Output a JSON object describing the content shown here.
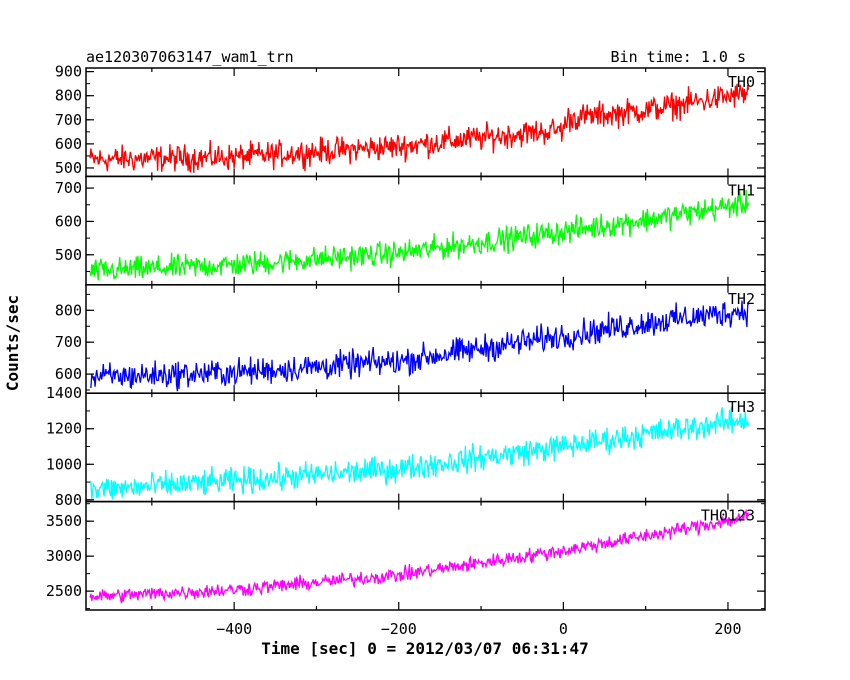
{
  "header": {
    "title": "ae120307063147_wam1_trn",
    "bin_time": "Bin time: 1.0 s"
  },
  "xaxis": {
    "label": "Time [sec] 0 = 2012/03/07 06:31:47",
    "range": [
      -580,
      245
    ],
    "ticks": [
      -400,
      -200,
      0,
      200
    ],
    "tick_labels": [
      "−400",
      "−200",
      "0",
      "200"
    ]
  },
  "yaxis": {
    "label": "Counts/sec"
  },
  "chart_data": [
    {
      "type": "line",
      "name": "TH0",
      "color": "#ff0000",
      "ylim": [
        465,
        915
      ],
      "yticks": [
        500,
        600,
        700,
        800,
        900
      ],
      "x_range": [
        -575,
        225
      ],
      "trend": [
        [
          -575,
          535
        ],
        [
          -400,
          545
        ],
        [
          -200,
          590
        ],
        [
          0,
          660
        ],
        [
          5,
          705
        ],
        [
          100,
          740
        ],
        [
          225,
          810
        ]
      ],
      "noise": 45
    },
    {
      "type": "line",
      "name": "TH1",
      "color": "#00ff00",
      "ylim": [
        410,
        735
      ],
      "yticks": [
        500,
        600,
        700
      ],
      "x_range": [
        -575,
        225
      ],
      "trend": [
        [
          -575,
          450
        ],
        [
          -400,
          470
        ],
        [
          -200,
          505
        ],
        [
          0,
          570
        ],
        [
          100,
          605
        ],
        [
          225,
          655
        ]
      ],
      "noise": 30
    },
    {
      "type": "line",
      "name": "TH2",
      "color": "#0000ff",
      "ylim": [
        540,
        880
      ],
      "yticks": [
        600,
        700,
        800
      ],
      "x_range": [
        -575,
        225
      ],
      "trend": [
        [
          -575,
          590
        ],
        [
          -400,
          605
        ],
        [
          -200,
          640
        ],
        [
          0,
          720
        ],
        [
          100,
          760
        ],
        [
          225,
          800
        ]
      ],
      "noise": 35
    },
    {
      "type": "line",
      "name": "TH3",
      "color": "#00ffff",
      "ylim": [
        790,
        1400
      ],
      "yticks": [
        800,
        1000,
        1200,
        1400
      ],
      "x_range": [
        -575,
        225
      ],
      "trend": [
        [
          -575,
          855
        ],
        [
          -400,
          905
        ],
        [
          -200,
          975
        ],
        [
          0,
          1100
        ],
        [
          100,
          1170
        ],
        [
          225,
          1255
        ]
      ],
      "noise": 60
    },
    {
      "type": "line",
      "name": "TH0123",
      "color": "#ff00ff",
      "ylim": [
        2230,
        3780
      ],
      "yticks": [
        2500,
        3000,
        3500
      ],
      "x_range": [
        -575,
        225
      ],
      "trend": [
        [
          -575,
          2420
        ],
        [
          -400,
          2520
        ],
        [
          -200,
          2730
        ],
        [
          0,
          3080
        ],
        [
          100,
          3290
        ],
        [
          225,
          3560
        ]
      ],
      "noise": 85
    }
  ]
}
